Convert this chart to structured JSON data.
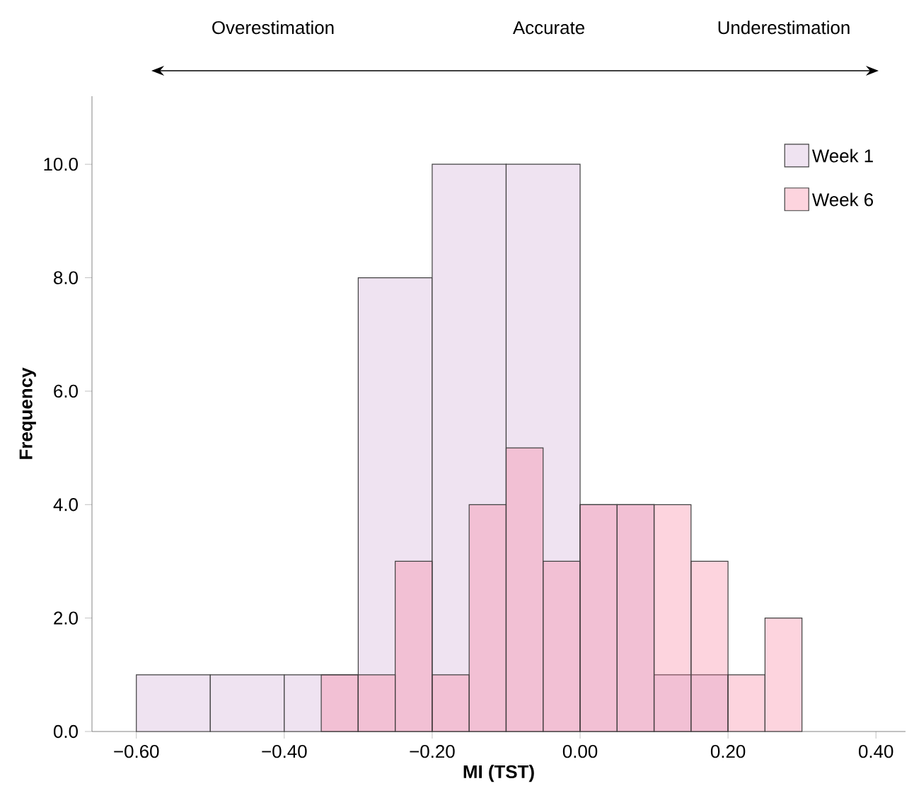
{
  "chart_data": {
    "type": "histogram",
    "xlabel": "MI (TST)",
    "ylabel": "Frequency",
    "annotations": [
      "Overestimation",
      "Accurate",
      "Underestimation"
    ],
    "bins": [
      -0.6,
      -0.5,
      -0.4,
      -0.3,
      -0.2,
      -0.1,
      0.0,
      0.1,
      0.2
    ],
    "series": [
      {
        "name": "Week 1",
        "color": "#efe3f1",
        "values": [
          1,
          1,
          1,
          8,
          10,
          10,
          4,
          1
        ]
      },
      {
        "name": "Week 6",
        "color": "#fdd4de",
        "bins": [
          -0.35,
          -0.3,
          -0.25,
          -0.2,
          -0.15,
          -0.1,
          -0.05,
          0.0,
          0.05,
          0.1,
          0.15,
          0.2,
          0.25,
          0.3
        ],
        "values": [
          1,
          1,
          3,
          1,
          4,
          5,
          3,
          4,
          4,
          4,
          3,
          1,
          2
        ]
      }
    ],
    "xlim": [
      -0.66,
      0.44
    ],
    "ylim": [
      0,
      11.2
    ],
    "xticks": [
      {
        "value": -0.6,
        "label": "−0.60"
      },
      {
        "value": -0.4,
        "label": "−0.40"
      },
      {
        "value": -0.2,
        "label": "−0.20"
      },
      {
        "value": 0.0,
        "label": "0.00"
      },
      {
        "value": 0.2,
        "label": "0.20"
      },
      {
        "value": 0.4,
        "label": "0.40"
      }
    ],
    "yticks": [
      {
        "value": 0,
        "label": "0.0"
      },
      {
        "value": 2,
        "label": "2.0"
      },
      {
        "value": 4,
        "label": "4.0"
      },
      {
        "value": 6,
        "label": "6.0"
      },
      {
        "value": 8,
        "label": "8.0"
      },
      {
        "value": 10,
        "label": "10.0"
      }
    ],
    "legend": "top right",
    "grid": false
  }
}
